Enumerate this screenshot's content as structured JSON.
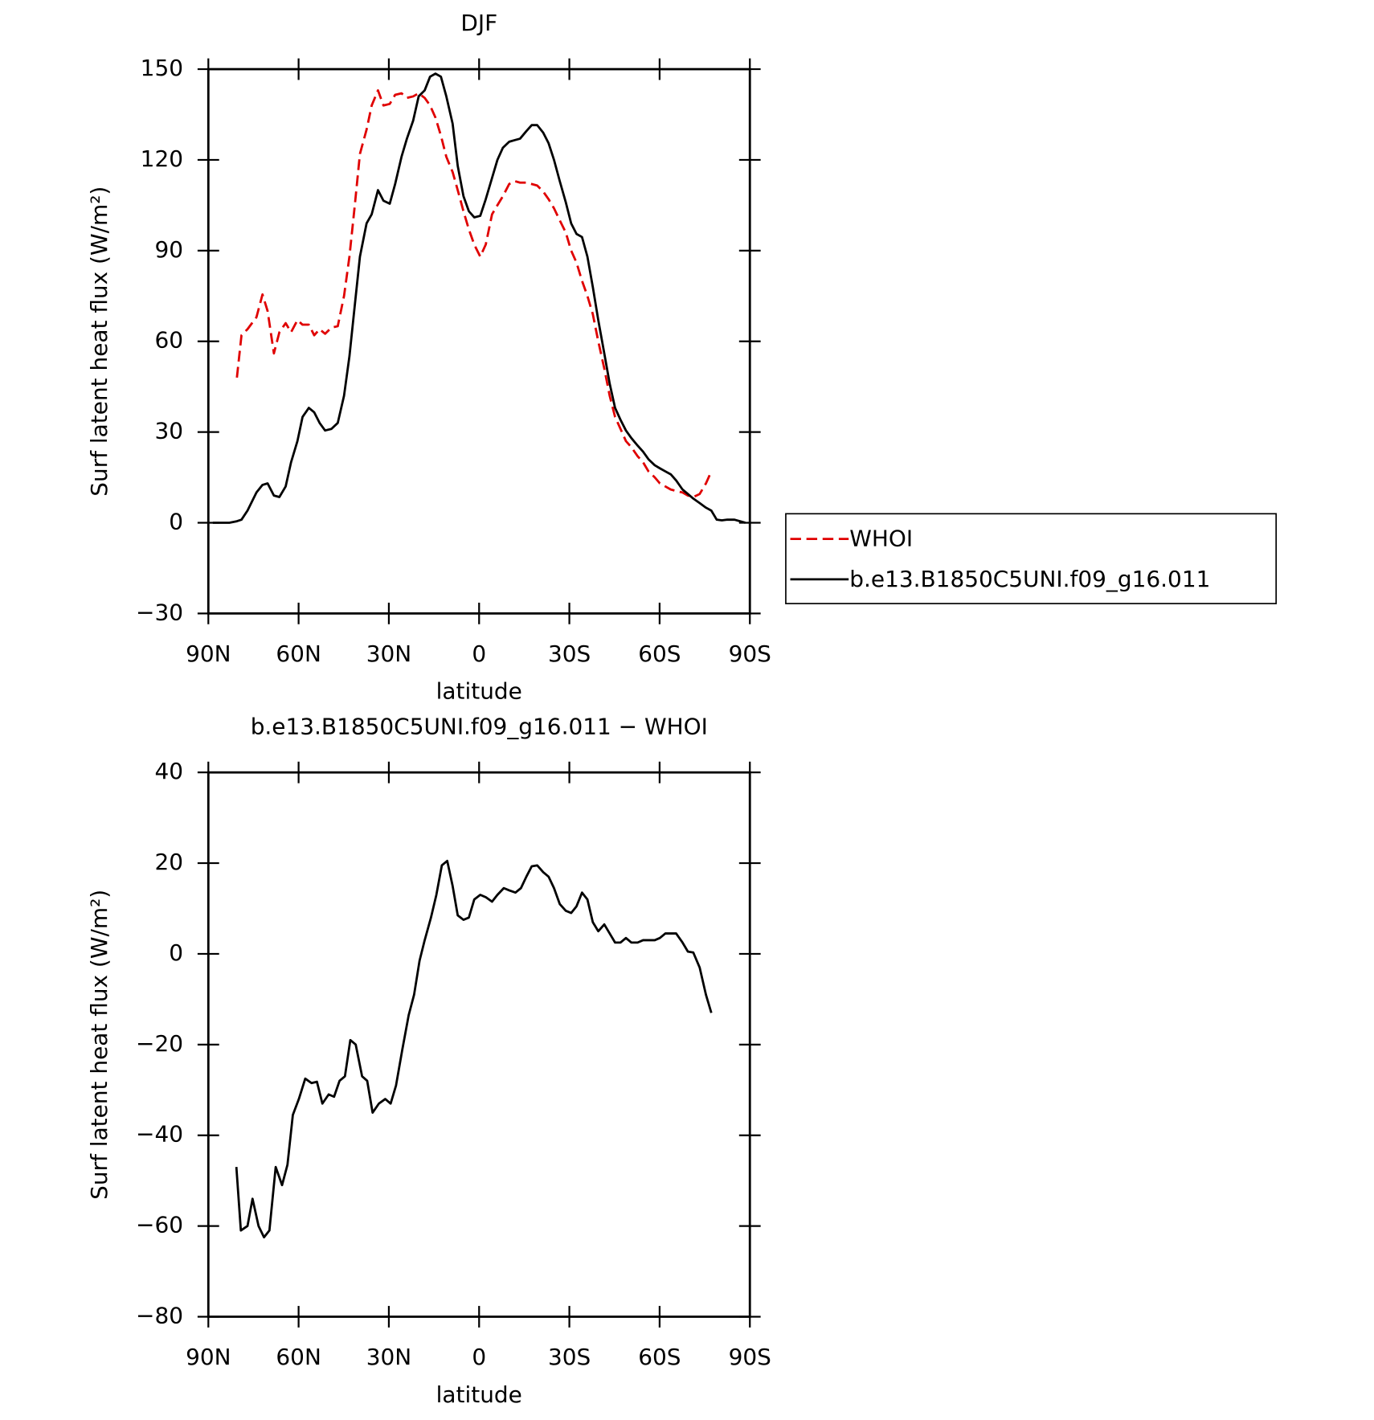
{
  "chart_data": [
    {
      "type": "line",
      "title": "DJF",
      "x_label": "latitude",
      "y_label": "Surf latent heat flux (W/m²)",
      "xlim": [
        90,
        -90
      ],
      "xticks": [
        {
          "value": 90,
          "label": "90N"
        },
        {
          "value": 60,
          "label": "60N"
        },
        {
          "value": 30,
          "label": "30N"
        },
        0,
        {
          "value": -30,
          "label": "30S"
        },
        {
          "value": -60,
          "label": "60S"
        },
        {
          "value": -90,
          "label": "90S"
        }
      ],
      "ylim": [
        -30,
        150
      ],
      "yticks": [
        {
          "value": -30,
          "label": "−30"
        },
        0,
        30,
        60,
        90,
        120,
        150
      ],
      "legend": "right",
      "x": [
        88.5,
        83,
        80.5,
        79,
        77,
        74,
        72,
        70.3,
        68.2,
        66.4,
        64.3,
        62.5,
        60.4,
        58.7,
        56.6,
        54.8,
        53,
        51.2,
        49.1,
        47,
        44.9,
        43.1,
        41.3,
        39.6,
        37.4,
        35.7,
        33.6,
        31.8,
        29.7,
        27.9,
        25.8,
        24,
        21.9,
        20.1,
        18.1,
        16.3,
        14.5,
        12.7,
        10.9,
        8.8,
        7.1,
        5.2,
        3.4,
        1.6,
        -0.4,
        -2.2,
        -4.3,
        -6.1,
        -7.9,
        -10,
        -11.8,
        -13.6,
        -15.7,
        -17.5,
        -19.3,
        -21.3,
        -23.1,
        -24.9,
        -26.8,
        -28.8,
        -30.6,
        -32.4,
        -34.2,
        -36,
        -37.8,
        -39.6,
        -41.6,
        -43.4,
        -45.2,
        -47,
        -48.8,
        -50.6,
        -52.7,
        -54.5,
        -56.3,
        -58.4,
        -60.1,
        -61.9,
        -63.7,
        -65.5,
        -67.6,
        -69.4,
        -71.2,
        -73.3,
        -75.4,
        -77.2,
        -79,
        -80.7,
        -82.5,
        -84.9,
        -88.5
      ],
      "series": [
        {
          "name": "WHOI",
          "color": "#e00000",
          "style": "dashed",
          "values": [
            null,
            null,
            48,
            62,
            64,
            68,
            75.5,
            70,
            56,
            63,
            66,
            63,
            67,
            65.5,
            65.5,
            62,
            64,
            62.5,
            64.5,
            65,
            75,
            88,
            105,
            122,
            130,
            138,
            143,
            138,
            138.5,
            141.5,
            142,
            140.5,
            141,
            142,
            140.5,
            138,
            134,
            128,
            121,
            116,
            110,
            103,
            97,
            92,
            88,
            92,
            102,
            105,
            108,
            112,
            113,
            112.5,
            112.5,
            112,
            111.5,
            109.5,
            107,
            104,
            100,
            96,
            90,
            86,
            80,
            75,
            69,
            60,
            51,
            42,
            35,
            31,
            27,
            25,
            22,
            20,
            17,
            15,
            13,
            12,
            11,
            10.5,
            10,
            9,
            8.5,
            9.5,
            13,
            17,
            null,
            null,
            null,
            null,
            null
          ]
        },
        {
          "name": "b.e13.B1850C5UNI.f09_g16.011",
          "color": "#000000",
          "style": "solid",
          "values": [
            0,
            0,
            0.5,
            1,
            4,
            10,
            12.5,
            13,
            9,
            8.5,
            12,
            20,
            27,
            35,
            38,
            36.5,
            33,
            30.5,
            31,
            33,
            42,
            55,
            72,
            88,
            99,
            102,
            110,
            106.5,
            105.5,
            112,
            121,
            127,
            133,
            141,
            143,
            147.5,
            148.5,
            147.5,
            141,
            132,
            118,
            108,
            103,
            101,
            101.5,
            107,
            114,
            120,
            124,
            126,
            126.5,
            127,
            129.5,
            131.5,
            131.5,
            129,
            125.5,
            120,
            113,
            106,
            99,
            95.5,
            94.5,
            88,
            78,
            67,
            56,
            46,
            38,
            34,
            30.5,
            28,
            25.5,
            23.5,
            21,
            19,
            18,
            17,
            16,
            14,
            11,
            9.5,
            8,
            6.5,
            5,
            4,
            1,
            0.8,
            1,
            1,
            0
          ]
        }
      ]
    },
    {
      "type": "line",
      "title": "b.e13.B1850C5UNI.f09_g16.011 − WHOI",
      "x_label": "latitude",
      "y_label": "Surf latent heat flux (W/m²)",
      "xlim": [
        90,
        -90
      ],
      "xticks": [
        {
          "value": 90,
          "label": "90N"
        },
        {
          "value": 60,
          "label": "60N"
        },
        {
          "value": 30,
          "label": "30N"
        },
        0,
        {
          "value": -30,
          "label": "30S"
        },
        {
          "value": -60,
          "label": "60S"
        },
        {
          "value": -90,
          "label": "90S"
        }
      ],
      "ylim": [
        -80,
        40
      ],
      "yticks": [
        {
          "value": -80,
          "label": "−80"
        },
        {
          "value": -60,
          "label": "−60"
        },
        {
          "value": -40,
          "label": "−40"
        },
        {
          "value": -20,
          "label": "−20"
        },
        0,
        20,
        40
      ],
      "x": [
        80.7,
        79.2,
        77,
        75.3,
        73.3,
        71.5,
        69.7,
        67.6,
        65.5,
        63.7,
        61.9,
        59.9,
        57.8,
        55.7,
        53.9,
        52.1,
        50,
        48.2,
        46.4,
        44.6,
        42.8,
        41,
        38.9,
        37.2,
        35.4,
        33.3,
        31.2,
        29.4,
        27.6,
        25.5,
        23.4,
        21.6,
        19.8,
        18.1,
        16,
        14.2,
        12.4,
        10.6,
        8.8,
        7.1,
        5.2,
        3.4,
        1.6,
        -0.4,
        -2.2,
        -4.3,
        -6.1,
        -8.2,
        -10,
        -12.1,
        -13.9,
        -15.7,
        -17.5,
        -19.3,
        -21.3,
        -23.1,
        -24.9,
        -26.8,
        -28.8,
        -30.6,
        -32.4,
        -34.2,
        -36,
        -37.8,
        -39.6,
        -41.6,
        -43.4,
        -45.2,
        -47,
        -48.8,
        -50.6,
        -52.7,
        -54.5,
        -56.3,
        -58.4,
        -60.1,
        -61.9,
        -63.7,
        -65.5,
        -67.6,
        -69.4,
        -71.2,
        -73.3,
        -75.4,
        -77.2
      ],
      "series": [
        {
          "color": "#000000",
          "style": "solid",
          "values": [
            -47,
            -61,
            -60,
            -54,
            -60,
            -62.5,
            -61,
            -47,
            -51,
            -46.5,
            -35.5,
            -32,
            -27.5,
            -28.5,
            -28.2,
            -33,
            -31,
            -31.5,
            -28,
            -27,
            -19,
            -20,
            -27,
            -28,
            -35,
            -33,
            -32,
            -33,
            -29,
            -21,
            -13.5,
            -9,
            -1.5,
            3,
            8,
            13,
            19.5,
            20.5,
            15,
            8.5,
            7.5,
            8,
            12,
            13,
            12.5,
            11.5,
            13,
            14.5,
            14,
            13.5,
            14.5,
            17,
            19.3,
            19.5,
            18,
            17,
            14.5,
            11,
            9.5,
            9,
            10.5,
            13.5,
            12,
            7,
            5,
            6.5,
            4.5,
            2.5,
            2.5,
            3.5,
            2.5,
            2.5,
            3,
            3,
            3,
            3.5,
            4.5,
            4.5,
            4.5,
            2.5,
            0.5,
            0.3,
            -3,
            -9,
            -13
          ]
        }
      ]
    }
  ]
}
